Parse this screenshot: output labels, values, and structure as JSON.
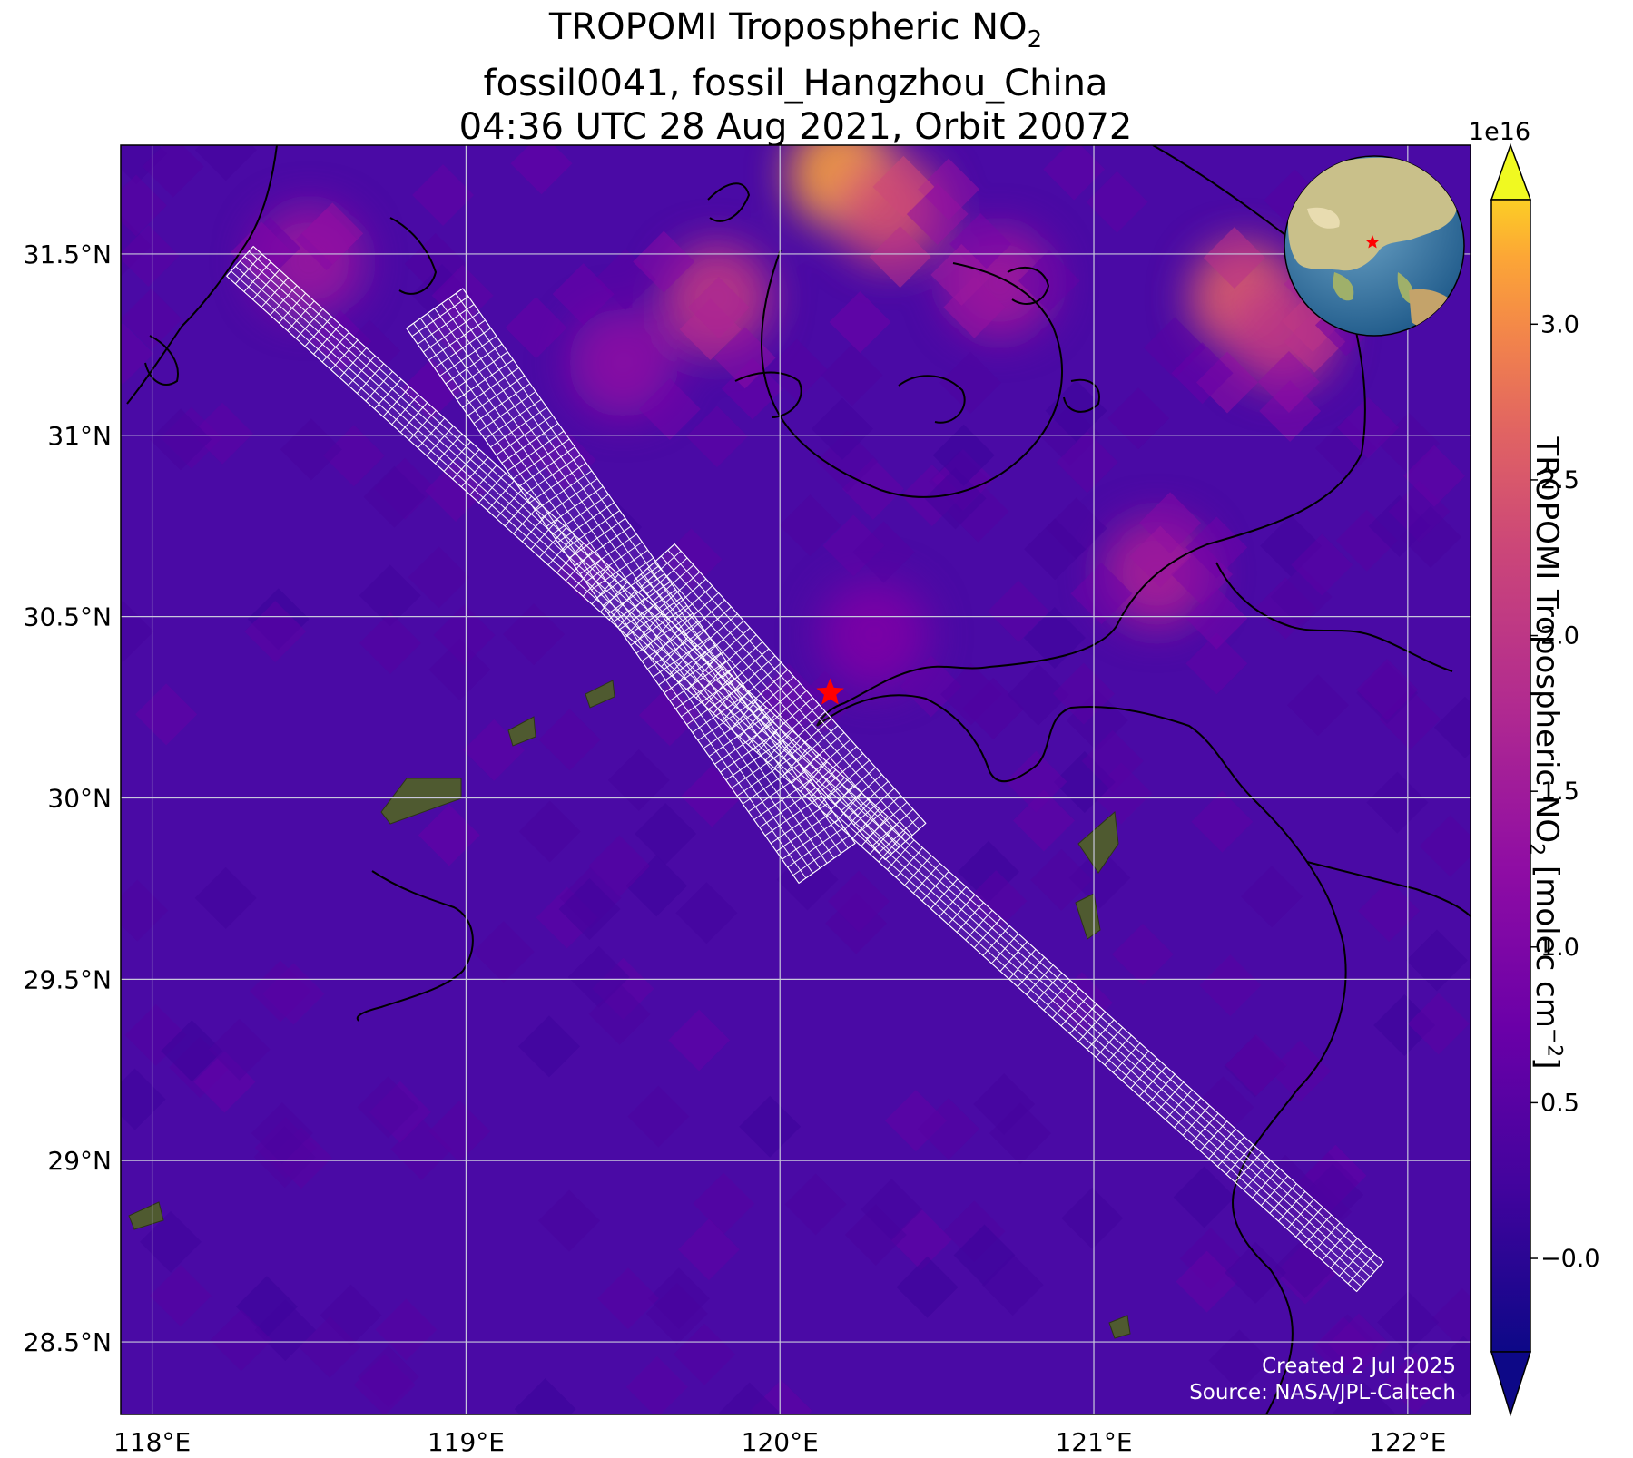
{
  "title": {
    "line1_main": "TROPOMI Tropospheric NO",
    "line1_sub": "2",
    "line2": "fossil0041, fossil_Hangzhou_China",
    "line3": "04:36 UTC 28 Aug 2021, Orbit 20072"
  },
  "map": {
    "lon_range": [
      117.9,
      122.2
    ],
    "lat_range": [
      28.3,
      31.8
    ],
    "lon_ticks": [
      "118°E",
      "119°E",
      "120°E",
      "121°E",
      "122°E"
    ],
    "lon_tick_values": [
      118,
      119,
      120,
      121,
      122
    ],
    "lat_ticks": [
      "31.5°N",
      "31°N",
      "30.5°N",
      "30°N",
      "29.5°N",
      "29°N",
      "28.5°N"
    ],
    "lat_tick_values": [
      31.5,
      31,
      30.5,
      30,
      29.5,
      29,
      28.5
    ],
    "gridlines": true,
    "target": {
      "lon": 120.16,
      "lat": 30.29,
      "marker": "star-icon",
      "color": "#ff0000"
    },
    "hotspots": [
      {
        "lon": 120.2,
        "lat": 31.72,
        "value": 3.2e+16
      },
      {
        "lon": 120.35,
        "lat": 31.62,
        "value": 2.4e+16
      },
      {
        "lon": 119.8,
        "lat": 31.38,
        "value": 2e+16
      },
      {
        "lon": 121.48,
        "lat": 31.38,
        "value": 2.6e+16
      },
      {
        "lon": 121.6,
        "lat": 31.28,
        "value": 2e+16
      },
      {
        "lon": 120.7,
        "lat": 31.42,
        "value": 1.5e+16
      },
      {
        "lon": 119.5,
        "lat": 31.2,
        "value": 1.2e+16
      },
      {
        "lon": 118.5,
        "lat": 31.48,
        "value": 1.4e+16
      },
      {
        "lon": 121.2,
        "lat": 30.62,
        "value": 1.6e+16
      },
      {
        "lon": 120.3,
        "lat": 30.45,
        "value": 1e+16
      }
    ],
    "swath_color": "#ffffff"
  },
  "colorbar": {
    "label_main": "TROPOMI Tropospheric NO",
    "label_sub": "2",
    "label_units": " [molec cm",
    "label_sup": "−2",
    "label_end": "]",
    "exponent": "1e16",
    "ticks": [
      "−0.0",
      "0.5",
      "1.0",
      "1.5",
      "2.0",
      "2.5",
      "3.0"
    ],
    "tick_values": [
      0.0,
      0.5,
      1.0,
      1.5,
      2.0,
      2.5,
      3.0
    ],
    "range": [
      -0.3,
      3.4
    ],
    "colormap": "plasma",
    "extend": "both"
  },
  "inset_globe": {
    "icon": "globe-icon",
    "marker_color": "#ff0000"
  },
  "credits": {
    "line1": "Created 2 Jul 2025",
    "line2": "Source: NASA/JPL-Caltech"
  }
}
